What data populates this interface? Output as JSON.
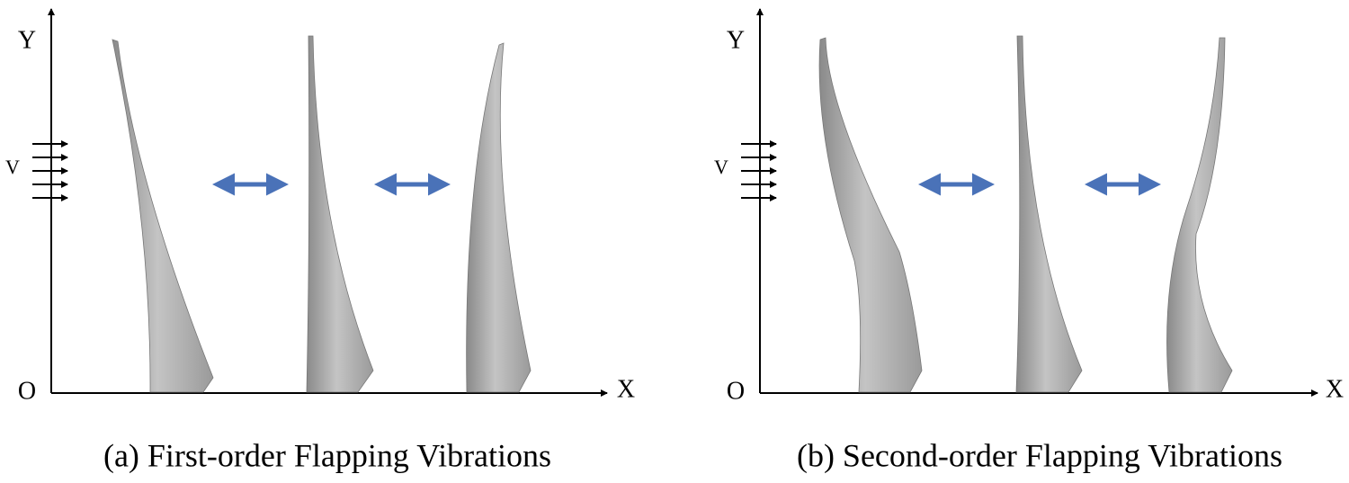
{
  "panels": [
    {
      "axis_labels": {
        "y": "Y",
        "origin": "O",
        "x": "X"
      },
      "wind_label": "V",
      "caption": "(a) First-order Flapping Vibrations"
    },
    {
      "axis_labels": {
        "y": "Y",
        "origin": "O",
        "x": "X"
      },
      "wind_label": "V",
      "caption": "(b) Second-order Flapping Vibrations"
    }
  ]
}
